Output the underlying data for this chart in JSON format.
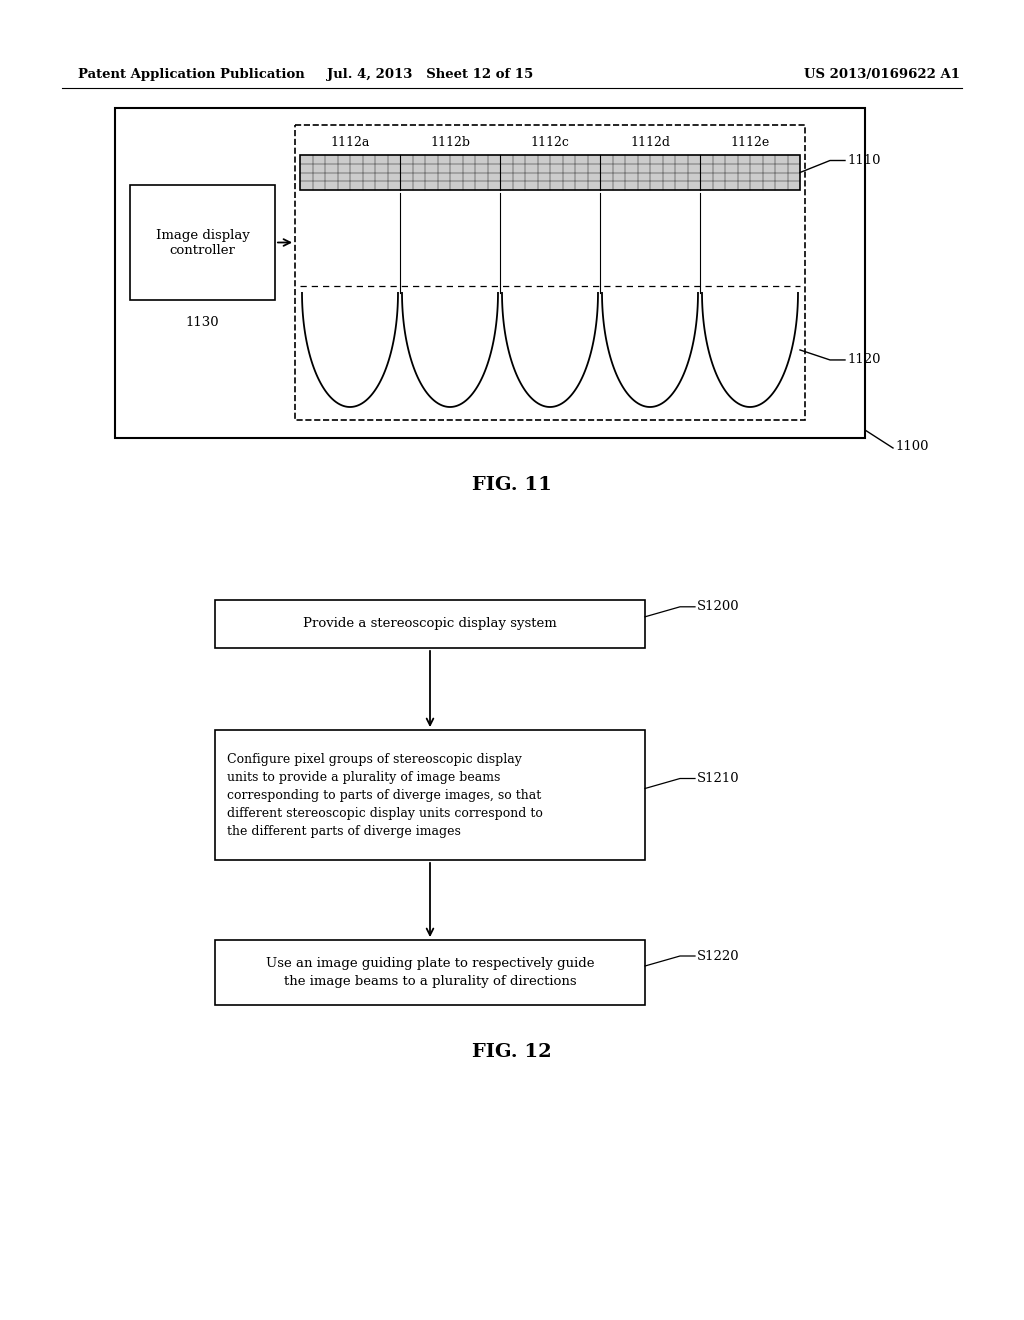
{
  "bg_color": "#ffffff",
  "header_left": "Patent Application Publication",
  "header_mid": "Jul. 4, 2013   Sheet 12 of 15",
  "header_right": "US 2013/0169622 A1",
  "fig11_label": "FIG. 11",
  "fig12_label": "FIG. 12",
  "pixel_labels": [
    "1112a",
    "1112b",
    "1112c",
    "1112d",
    "1112e"
  ],
  "label_1100": "1100",
  "label_1110": "1110",
  "label_1120": "1120",
  "controller_text": "Image display\ncontroller",
  "controller_label": "1130",
  "flow_box1_text": "Provide a stereoscopic display system",
  "flow_box1_label": "S1200",
  "flow_box2_text": "Configure pixel groups of stereoscopic display\nunits to provide a plurality of image beams\ncorresponding to parts of diverge images, so that\ndifferent stereoscopic display units correspond to\nthe different parts of diverge images",
  "flow_box2_label": "S1210",
  "flow_box3_text": "Use an image guiding plate to respectively guide\nthe image beams to a plurality of directions",
  "flow_box3_label": "S1220"
}
